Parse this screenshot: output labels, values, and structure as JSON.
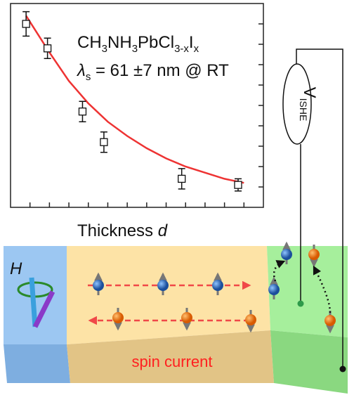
{
  "chart_data": {
    "type": "scatter",
    "formula": [
      "CH",
      "3",
      "NH",
      "3",
      "PbCl",
      "3-x",
      "I",
      "x"
    ],
    "annotation": [
      "λ",
      "s",
      " = 61 ±7 nm @ RT"
    ],
    "xlabel": [
      "Thickness ",
      "d"
    ],
    "x": [
      0.8,
      1.9,
      3.7,
      4.8,
      8.8,
      11.7
    ],
    "values": [
      9.0,
      7.8,
      4.7,
      3.2,
      1.4,
      1.1
    ],
    "errors": [
      0.6,
      0.5,
      0.5,
      0.5,
      0.5,
      0.3
    ],
    "color": "#111111",
    "fit": {
      "color": "#ee3333",
      "x": [
        0.8,
        2,
        3,
        4,
        5,
        6,
        7,
        8,
        9,
        10,
        11,
        12
      ],
      "values": [
        9.4,
        7.6,
        6.2,
        5.1,
        4.2,
        3.5,
        2.9,
        2.4,
        2.0,
        1.7,
        1.4,
        1.2
      ]
    },
    "xlim": [
      0,
      13
    ],
    "ylim": [
      0,
      10
    ],
    "xticks": [
      1,
      2,
      3,
      4,
      5,
      6,
      7,
      8,
      9,
      10,
      11,
      12
    ],
    "yticks": [
      1,
      2,
      3,
      4,
      5,
      6,
      7,
      8,
      9
    ]
  },
  "diagram": {
    "field": "H",
    "voltage": [
      "V",
      "ISHE"
    ],
    "current": "spin current"
  }
}
